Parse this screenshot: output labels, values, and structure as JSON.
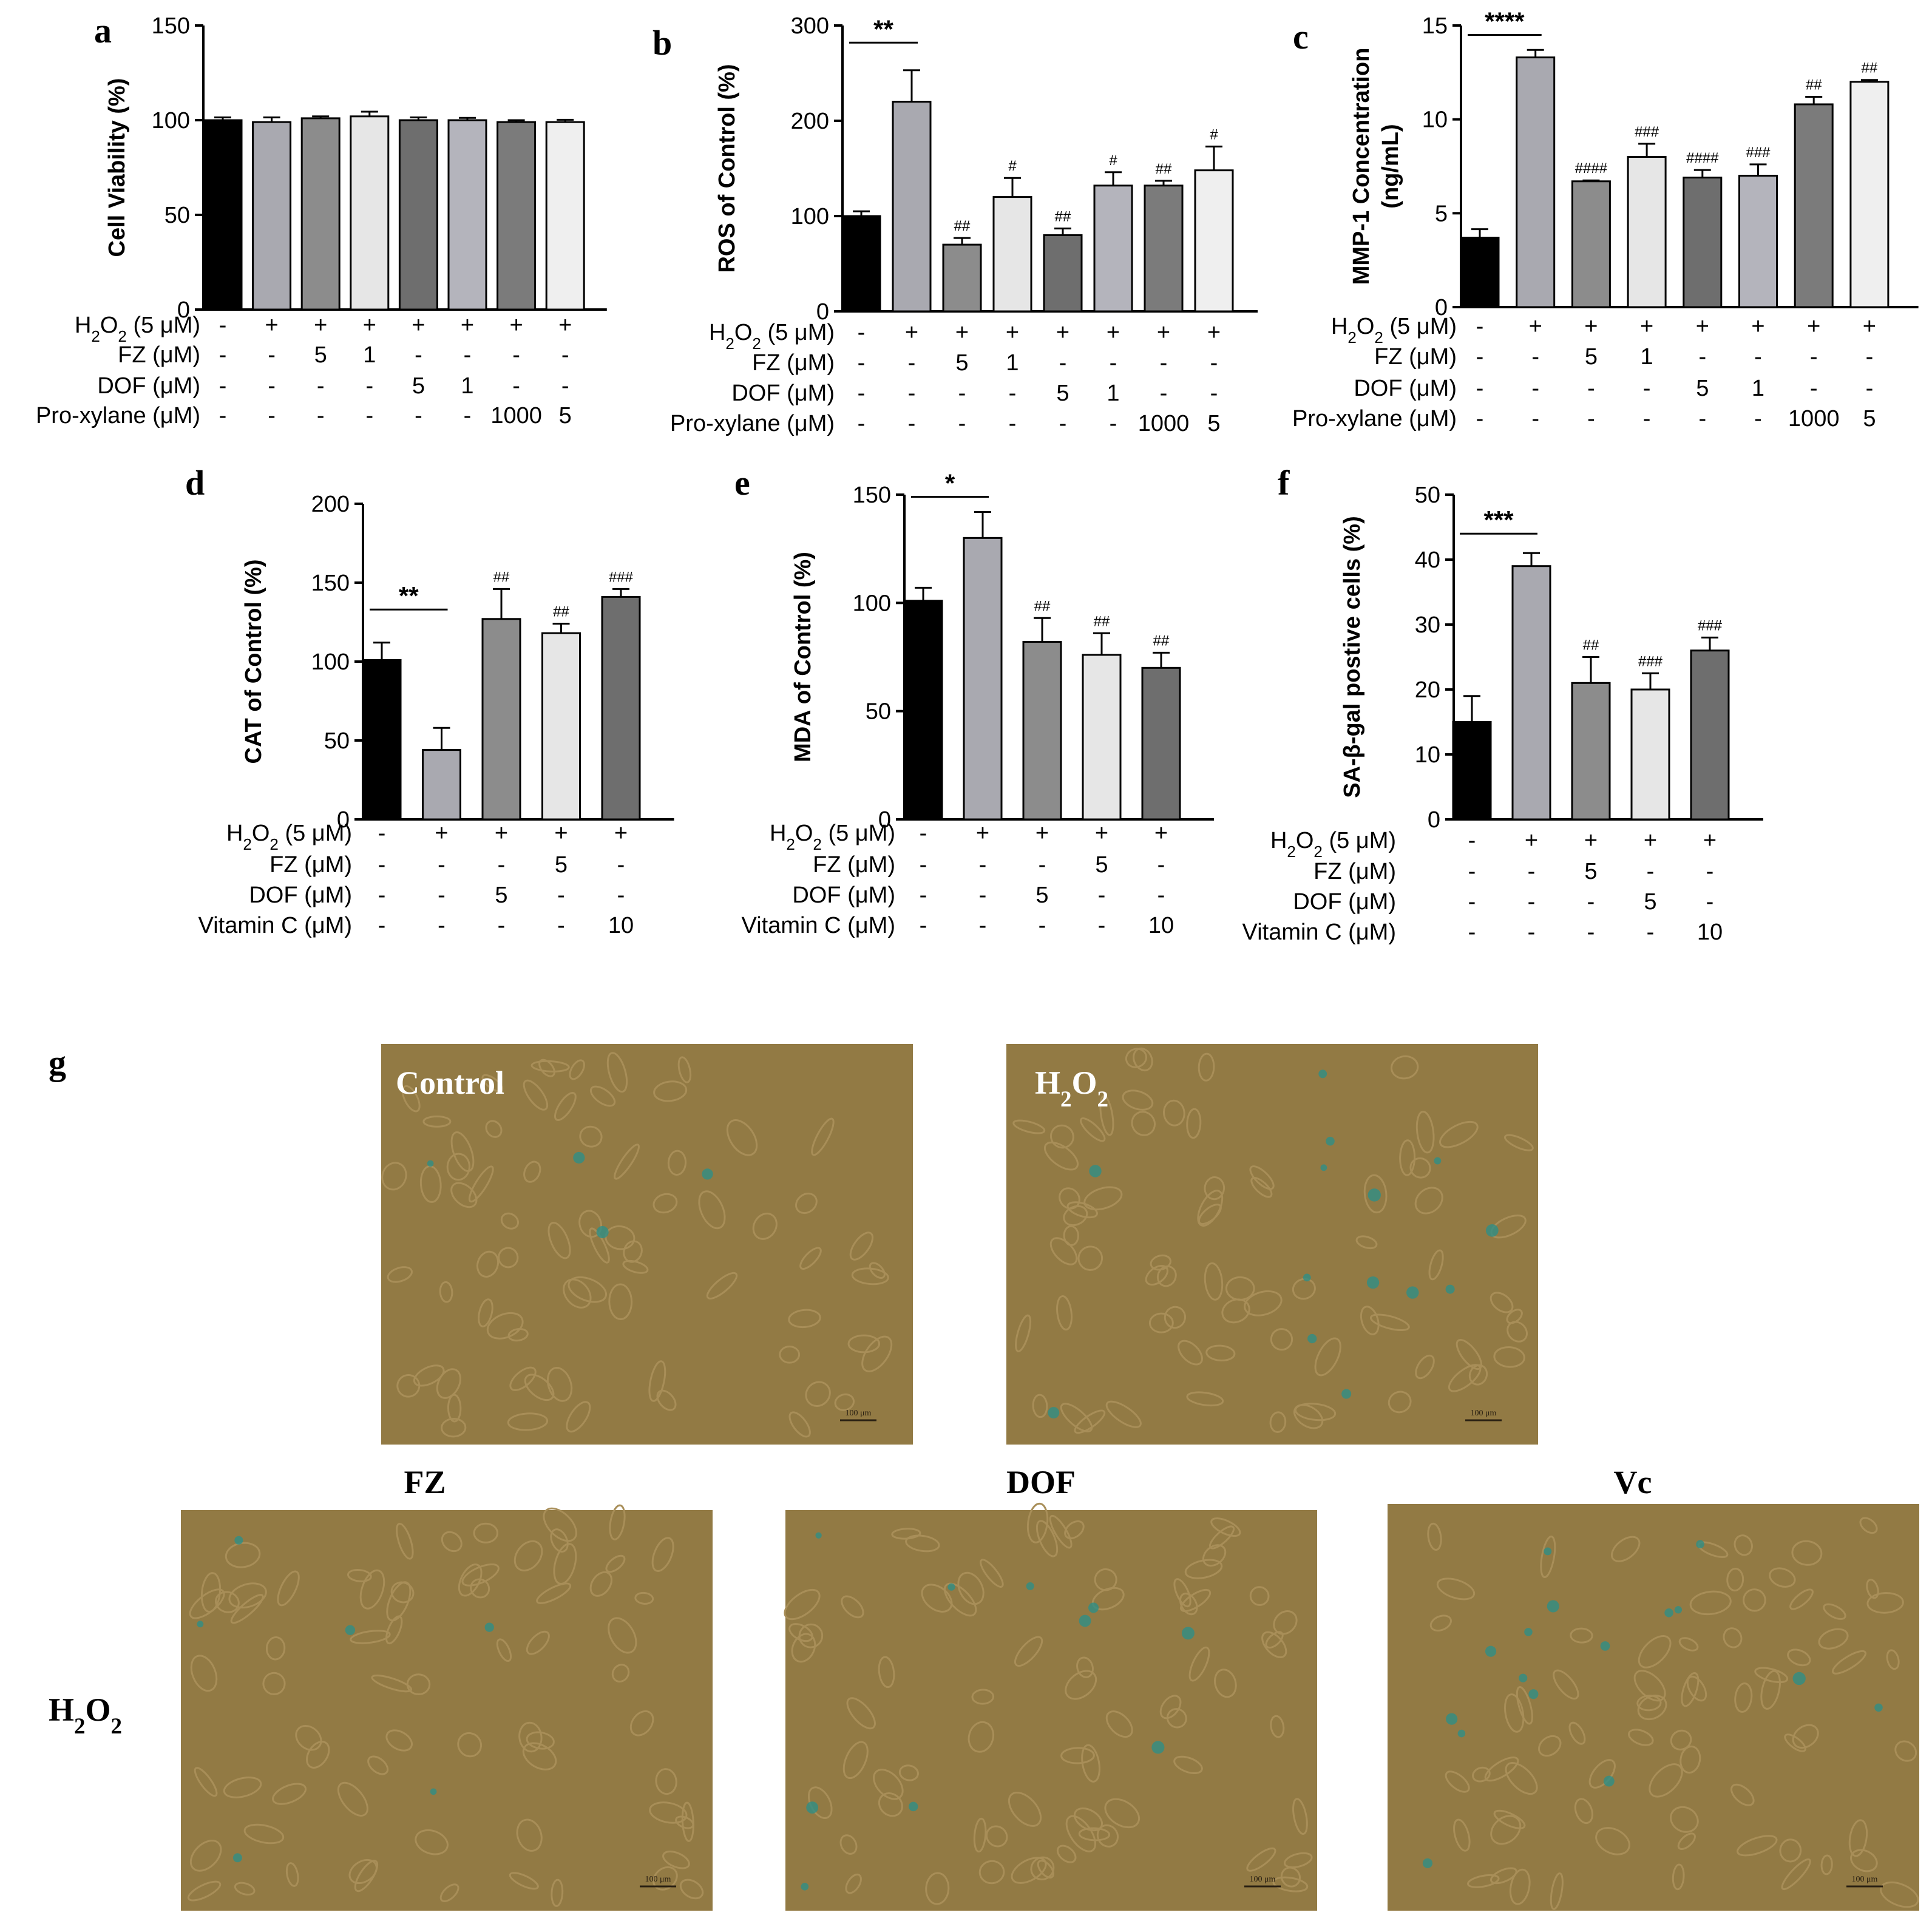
{
  "panel_letters": {
    "a": "a",
    "b": "b",
    "c": "c",
    "d": "d",
    "e": "e",
    "f": "f",
    "g": "g"
  },
  "colors": {
    "black": "#000000",
    "g1": "#a9a9b0",
    "g2": "#8c8c8c",
    "g3": "#e6e6e6",
    "g4": "#6e6e6e",
    "g5": "#b4b4bc",
    "g6": "#7b7b7b",
    "g7": "#efefef",
    "micro_bg": "#927a44",
    "micro_cell": "#a88e58",
    "micro_blue": "#2f8e86"
  },
  "chart_data": [
    {
      "id": "a",
      "type": "bar",
      "ylabel": "Cell Viability  (%)",
      "ylim": [
        0,
        150
      ],
      "yticks": [
        0,
        50,
        100,
        150
      ],
      "values": [
        100,
        99,
        101,
        102,
        100,
        100,
        99,
        99
      ],
      "errors": [
        1.5,
        2.5,
        1,
        2.5,
        1.5,
        1.2,
        1,
        1.2
      ],
      "colors": [
        "#000000",
        "#a9a9b0",
        "#8c8c8c",
        "#e6e6e6",
        "#6e6e6e",
        "#b4b4bc",
        "#7b7b7b",
        "#efefef"
      ],
      "significance": [],
      "bar_annotations": [
        "",
        "",
        "",
        "",
        "",
        "",
        "",
        ""
      ],
      "treatments": [
        {
          "label": "H2O2 (5 μM)",
          "values": [
            "-",
            "+",
            "+",
            "+",
            "+",
            "+",
            "+",
            "+"
          ]
        },
        {
          "label": "FZ (μM)",
          "values": [
            "-",
            "-",
            "5",
            "1",
            "-",
            "-",
            "-",
            "-"
          ]
        },
        {
          "label": "DOF (μM)",
          "values": [
            "-",
            "-",
            "-",
            "-",
            "5",
            "1",
            "-",
            "-"
          ]
        },
        {
          "label": "Pro-xylane (μM)",
          "values": [
            "-",
            "-",
            "-",
            "-",
            "-",
            "-",
            "1000",
            "5"
          ]
        }
      ]
    },
    {
      "id": "b",
      "type": "bar",
      "ylabel": "ROS of Control (%)",
      "ylim": [
        0,
        300
      ],
      "yticks": [
        0,
        100,
        200,
        300
      ],
      "values": [
        100,
        220,
        70,
        120,
        80,
        132,
        132,
        148
      ],
      "errors": [
        5,
        33,
        7,
        20,
        7,
        14,
        5,
        25
      ],
      "colors": [
        "#000000",
        "#a9a9b0",
        "#8c8c8c",
        "#e6e6e6",
        "#6e6e6e",
        "#b4b4bc",
        "#7b7b7b",
        "#efefef"
      ],
      "significance": [
        {
          "from": 0,
          "to": 1,
          "label": "**",
          "y": 282
        }
      ],
      "bar_annotations": [
        "",
        "",
        "##",
        "#",
        "##",
        "#",
        "##",
        "#"
      ],
      "treatments": [
        {
          "label": "H2O2 (5 μM)",
          "values": [
            "-",
            "+",
            "+",
            "+",
            "+",
            "+",
            "+",
            "+"
          ]
        },
        {
          "label": "FZ (μM)",
          "values": [
            "-",
            "-",
            "5",
            "1",
            "-",
            "-",
            "-",
            "-"
          ]
        },
        {
          "label": "DOF (μM)",
          "values": [
            "-",
            "-",
            "-",
            "-",
            "5",
            "1",
            "-",
            "-"
          ]
        },
        {
          "label": "Pro-xylane (μM)",
          "values": [
            "-",
            "-",
            "-",
            "-",
            "-",
            "-",
            "1000",
            "5"
          ]
        }
      ]
    },
    {
      "id": "c",
      "type": "bar",
      "ylabel": "MMP-1 Concentration",
      "ylabel2": "(ng/mL)",
      "ylim": [
        0,
        15
      ],
      "yticks": [
        0,
        5,
        10,
        15
      ],
      "values": [
        3.7,
        13.3,
        6.7,
        8.0,
        6.9,
        7.0,
        10.8,
        12.0
      ],
      "errors": [
        0.45,
        0.4,
        0.05,
        0.7,
        0.4,
        0.6,
        0.4,
        0.1
      ],
      "colors": [
        "#000000",
        "#a9a9b0",
        "#8c8c8c",
        "#e6e6e6",
        "#6e6e6e",
        "#b4b4bc",
        "#7b7b7b",
        "#efefef"
      ],
      "significance": [
        {
          "from": 0,
          "to": 1,
          "label": "****",
          "y": 14.5
        }
      ],
      "bar_annotations": [
        "",
        "",
        "####",
        "###",
        "####",
        "###",
        "##",
        "##"
      ],
      "treatments": [
        {
          "label": "H2O2 (5 μM)",
          "values": [
            "-",
            "+",
            "+",
            "+",
            "+",
            "+",
            "+",
            "+"
          ]
        },
        {
          "label": "FZ (μM)",
          "values": [
            "-",
            "-",
            "5",
            "1",
            "-",
            "-",
            "-",
            "-"
          ]
        },
        {
          "label": "DOF (μM)",
          "values": [
            "-",
            "-",
            "-",
            "-",
            "5",
            "1",
            "-",
            "-"
          ]
        },
        {
          "label": "Pro-xylane (μM)",
          "values": [
            "-",
            "-",
            "-",
            "-",
            "-",
            "-",
            "1000",
            "5"
          ]
        }
      ]
    },
    {
      "id": "d",
      "type": "bar",
      "ylabel": "CAT of Control (%)",
      "ylim": [
        0,
        200
      ],
      "yticks": [
        0,
        50,
        100,
        150,
        200
      ],
      "values": [
        101,
        44,
        127,
        118,
        141
      ],
      "errors": [
        11,
        14,
        19,
        6,
        5
      ],
      "colors": [
        "#000000",
        "#a9a9b0",
        "#8c8c8c",
        "#e6e6e6",
        "#6e6e6e"
      ],
      "significance": [
        {
          "from": 0,
          "to": 1,
          "label": "**",
          "y": 133
        }
      ],
      "bar_annotations": [
        "",
        "",
        "##",
        "##",
        "###"
      ],
      "treatments": [
        {
          "label": "H2O2 (5 μM)",
          "values": [
            "-",
            "+",
            "+",
            "+",
            "+"
          ]
        },
        {
          "label": "FZ (μM)",
          "values": [
            "-",
            "-",
            "-",
            "5",
            "-"
          ]
        },
        {
          "label": "DOF (μM)",
          "values": [
            "-",
            "-",
            "5",
            "-",
            "-"
          ]
        },
        {
          "label": "Vitamin C (μM)",
          "values": [
            "-",
            "-",
            "-",
            "-",
            "10"
          ]
        }
      ]
    },
    {
      "id": "e",
      "type": "bar",
      "ylabel": "MDA of Control (%)",
      "ylim": [
        0,
        150
      ],
      "yticks": [
        0,
        50,
        100,
        150
      ],
      "values": [
        101,
        130,
        82,
        76,
        70
      ],
      "errors": [
        6,
        12,
        11,
        10,
        7
      ],
      "colors": [
        "#000000",
        "#a9a9b0",
        "#8c8c8c",
        "#e6e6e6",
        "#6e6e6e"
      ],
      "significance": [
        {
          "from": 0,
          "to": 1,
          "label": "*",
          "y": 149
        }
      ],
      "bar_annotations": [
        "",
        "",
        "##",
        "##",
        "##"
      ],
      "treatments": [
        {
          "label": "H2O2 (5 μM)",
          "values": [
            "-",
            "+",
            "+",
            "+",
            "+"
          ]
        },
        {
          "label": "FZ (μM)",
          "values": [
            "-",
            "-",
            "-",
            "5",
            "-"
          ]
        },
        {
          "label": "DOF (μM)",
          "values": [
            "-",
            "-",
            "5",
            "-",
            "-"
          ]
        },
        {
          "label": "Vitamin C (μM)",
          "values": [
            "-",
            "-",
            "-",
            "-",
            "10"
          ]
        }
      ]
    },
    {
      "id": "f",
      "type": "bar",
      "ylabel": "SA-β-gal postive cells (%)",
      "ylim": [
        0,
        50
      ],
      "yticks": [
        0,
        10,
        20,
        30,
        40,
        50
      ],
      "values": [
        15,
        39,
        21,
        20,
        26
      ],
      "errors": [
        4,
        2,
        4,
        2.5,
        2
      ],
      "colors": [
        "#000000",
        "#a9a9b0",
        "#8c8c8c",
        "#e6e6e6",
        "#6e6e6e"
      ],
      "significance": [
        {
          "from": 0,
          "to": 1,
          "label": "***",
          "y": 44
        }
      ],
      "bar_annotations": [
        "",
        "",
        "##",
        "###",
        "###"
      ],
      "treatments": [
        {
          "label": "H2O2 (5 μM)",
          "values": [
            "-",
            "+",
            "+",
            "+",
            "+"
          ]
        },
        {
          "label": "FZ (μM)",
          "values": [
            "-",
            "-",
            "5",
            "-",
            "-"
          ]
        },
        {
          "label": "DOF (μM)",
          "values": [
            "-",
            "-",
            "-",
            "5",
            "-"
          ]
        },
        {
          "label": "Vitamin C (μM)",
          "values": [
            "-",
            "-",
            "-",
            "-",
            "10"
          ]
        }
      ]
    }
  ],
  "micrographs": {
    "row1": [
      {
        "id": "control",
        "label": "Control",
        "scale": "100 μm"
      },
      {
        "id": "h2o2",
        "label": "H2O2",
        "scale": "100 μm"
      }
    ],
    "row2_col_labels": [
      "FZ",
      "DOF",
      "Vc"
    ],
    "row2_row_label": "H2O2",
    "row2": [
      {
        "id": "fz",
        "scale": "100 μm"
      },
      {
        "id": "dof",
        "scale": "100 μm"
      },
      {
        "id": "vc",
        "scale": "100 μm"
      }
    ]
  }
}
